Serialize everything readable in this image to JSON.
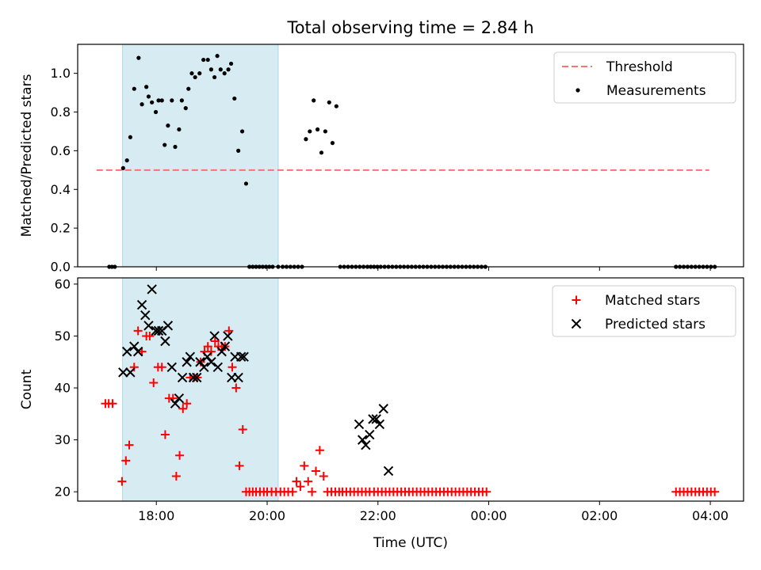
{
  "chart_data": {
    "type": "scatter",
    "title": "Total observing time = 2.84 h",
    "xlabel": "Time (UTC)",
    "x_ticks": [
      {
        "value": 18.0,
        "label": "18:00"
      },
      {
        "value": 20.0,
        "label": "20:00"
      },
      {
        "value": 22.0,
        "label": "22:00"
      },
      {
        "value": 24.0,
        "label": "00:00"
      },
      {
        "value": 26.0,
        "label": "02:00"
      },
      {
        "value": 28.0,
        "label": "04:00"
      }
    ],
    "xlim": [
      16.58,
      28.6
    ],
    "shaded_span": {
      "x0": 17.39,
      "x1": 20.2,
      "color": "#add8e6"
    },
    "panels": [
      {
        "ylabel": "Matched/Predicted stars",
        "ylim": [
          0,
          1.15
        ],
        "yticks": [
          0.0,
          0.2,
          0.4,
          0.6,
          0.8,
          1.0
        ],
        "tick_format": "fixed1",
        "legend": {
          "position": "upper right",
          "entries": [
            {
              "label": "Threshold",
              "marker": "dash",
              "color": "#ff7070"
            },
            {
              "label": "Measurements",
              "marker": "dot",
              "color": "#000000"
            }
          ]
        },
        "series": [
          {
            "name": "Threshold",
            "style": "dashed-line",
            "color": "#ff7070",
            "x": [
              16.92,
              27.98
            ],
            "y": [
              0.5,
              0.5
            ]
          },
          {
            "name": "Measurements",
            "style": "dot",
            "color": "#000000",
            "x": [
              17.15,
              17.2,
              17.25,
              17.4,
              17.47,
              17.53,
              17.6,
              17.68,
              17.74,
              17.82,
              17.86,
              17.92,
              17.99,
              18.04,
              18.1,
              18.15,
              18.21,
              18.28,
              18.34,
              18.41,
              18.46,
              18.53,
              18.58,
              18.64,
              18.7,
              18.78,
              18.85,
              18.93,
              18.99,
              19.05,
              19.1,
              19.16,
              19.23,
              19.3,
              19.35,
              19.41,
              19.48,
              19.55,
              19.62,
              19.68,
              19.74,
              19.8,
              19.86,
              19.92,
              19.98,
              20.04,
              20.1,
              20.2,
              20.28,
              20.35,
              20.42,
              20.49,
              20.56,
              20.63,
              20.7,
              20.77,
              20.84,
              20.91,
              20.98,
              21.05,
              21.12,
              21.18,
              21.25,
              21.32,
              21.39,
              21.46,
              21.53,
              21.6,
              21.67,
              21.74,
              21.81,
              21.87,
              21.93,
              21.99,
              22.05,
              22.12,
              22.19,
              22.26,
              22.33,
              22.4,
              22.47,
              22.54,
              22.61,
              22.68,
              22.75,
              22.82,
              22.89,
              22.96,
              23.03,
              23.1,
              23.17,
              23.24,
              23.31,
              23.38,
              23.45,
              23.52,
              23.59,
              23.66,
              23.73,
              23.8,
              23.87,
              23.94,
              27.38,
              27.45,
              27.52,
              27.59,
              27.66,
              27.73,
              27.8,
              27.87,
              27.94,
              28.01,
              28.08
            ],
            "y": [
              0.0,
              0.0,
              0.0,
              0.51,
              0.55,
              0.67,
              0.92,
              1.08,
              0.84,
              0.93,
              0.88,
              0.85,
              0.8,
              0.86,
              0.86,
              0.63,
              0.73,
              0.86,
              0.62,
              0.71,
              0.86,
              0.82,
              0.92,
              1.0,
              0.98,
              1.0,
              1.07,
              1.07,
              1.02,
              0.98,
              1.09,
              1.02,
              1.0,
              1.02,
              1.05,
              0.87,
              0.6,
              0.7,
              0.43,
              0.0,
              0.0,
              0.0,
              0.0,
              0.0,
              0.0,
              0.0,
              0.0,
              0.0,
              0.0,
              0.0,
              0.0,
              0.0,
              0.0,
              0.0,
              0.66,
              0.7,
              0.86,
              0.71,
              0.59,
              0.7,
              0.85,
              0.64,
              0.83,
              0.0,
              0.0,
              0.0,
              0.0,
              0.0,
              0.0,
              0.0,
              0.0,
              0.0,
              0.0,
              0.0,
              0.0,
              0.0,
              0.0,
              0.0,
              0.0,
              0.0,
              0.0,
              0.0,
              0.0,
              0.0,
              0.0,
              0.0,
              0.0,
              0.0,
              0.0,
              0.0,
              0.0,
              0.0,
              0.0,
              0.0,
              0.0,
              0.0,
              0.0,
              0.0,
              0.0,
              0.0,
              0.0,
              0.0,
              0.0,
              0.0,
              0.0,
              0.0,
              0.0,
              0.0,
              0.0,
              0.0,
              0.0,
              0.0,
              0.0
            ]
          }
        ]
      },
      {
        "ylabel": "Count",
        "ylim": [
          18.2,
          61.2
        ],
        "yticks": [
          20,
          30,
          40,
          50,
          60
        ],
        "tick_format": "int",
        "legend": {
          "position": "upper right",
          "entries": [
            {
              "label": "Matched stars",
              "marker": "plus",
              "color": "#ff0000"
            },
            {
              "label": "Predicted stars",
              "marker": "x",
              "color": "#000000"
            }
          ]
        },
        "series": [
          {
            "name": "Matched stars",
            "style": "plus",
            "color": "#ff0000",
            "x": [
              17.08,
              17.14,
              17.21,
              17.38,
              17.45,
              17.51,
              17.6,
              17.67,
              17.74,
              17.82,
              17.88,
              17.95,
              18.03,
              18.1,
              18.16,
              18.23,
              18.3,
              18.36,
              18.42,
              18.48,
              18.55,
              18.61,
              18.68,
              18.74,
              18.8,
              18.87,
              18.93,
              18.99,
              19.06,
              19.12,
              19.18,
              19.24,
              19.31,
              19.37,
              19.44,
              19.5,
              19.56,
              19.62,
              19.68,
              19.74,
              19.8,
              19.87,
              19.94,
              20.0,
              20.08,
              20.16,
              20.24,
              20.31,
              20.38,
              20.46,
              20.53,
              20.6,
              20.67,
              20.74,
              20.81,
              20.88,
              20.95,
              21.02,
              21.09,
              21.16,
              21.23,
              21.3,
              21.36,
              21.43,
              21.5,
              21.57,
              21.64,
              21.71,
              21.78,
              21.85,
              21.93,
              22.0,
              22.07,
              22.14,
              22.21,
              22.28,
              22.35,
              22.42,
              22.49,
              22.56,
              22.63,
              22.7,
              22.77,
              22.84,
              22.91,
              22.98,
              23.05,
              23.12,
              23.19,
              23.26,
              23.33,
              23.4,
              23.47,
              23.54,
              23.61,
              23.68,
              23.75,
              23.82,
              23.89,
              23.96,
              27.38,
              27.45,
              27.52,
              27.59,
              27.66,
              27.73,
              27.8,
              27.87,
              27.94,
              28.01,
              28.08
            ],
            "y": [
              37,
              37,
              37,
              22,
              26,
              29,
              44,
              51,
              47,
              50,
              50,
              41,
              44,
              44,
              31,
              38,
              38,
              23,
              27,
              36,
              37,
              42,
              42,
              42,
              45,
              47,
              48,
              47,
              49,
              48,
              48,
              48,
              51,
              44,
              40,
              25,
              32,
              20,
              20,
              20,
              20,
              20,
              20,
              20,
              20,
              20,
              20,
              20,
              20,
              20,
              22,
              21,
              25,
              22,
              20,
              24,
              28,
              23,
              20,
              20,
              20,
              20,
              20,
              20,
              20,
              20,
              20,
              20,
              20,
              20,
              20,
              20,
              20,
              20,
              20,
              20,
              20,
              20,
              20,
              20,
              20,
              20,
              20,
              20,
              20,
              20,
              20,
              20,
              20,
              20,
              20,
              20,
              20,
              20,
              20,
              20,
              20,
              20,
              20,
              20,
              20,
              20,
              20,
              20,
              20,
              20,
              20,
              20,
              20,
              20,
              20
            ],
            "x_trim": true
          },
          {
            "name": "Predicted stars",
            "style": "x",
            "color": "#000000",
            "x": [
              17.4,
              17.47,
              17.53,
              17.6,
              17.67,
              17.74,
              17.8,
              17.86,
              17.92,
              17.99,
              18.04,
              18.1,
              18.16,
              18.21,
              18.28,
              18.34,
              18.41,
              18.47,
              18.55,
              18.61,
              18.67,
              18.73,
              18.79,
              18.86,
              18.92,
              18.99,
              19.05,
              19.11,
              19.18,
              19.24,
              19.29,
              19.36,
              19.42,
              19.48,
              19.53,
              19.58,
              21.66,
              21.72,
              21.78,
              21.85,
              21.91,
              21.97,
              22.03,
              22.1,
              22.19
            ],
            "y": [
              43,
              47,
              43,
              48,
              47,
              56,
              54,
              52,
              59,
              51,
              51,
              51,
              49,
              52,
              44,
              37,
              38,
              42,
              45,
              46,
              42,
              42,
              45,
              44,
              46,
              45,
              50,
              44,
              47,
              48,
              50,
              42,
              46,
              42,
              46,
              46,
              33,
              30,
              29,
              31,
              34,
              34,
              33,
              36,
              24
            ]
          }
        ]
      }
    ]
  }
}
